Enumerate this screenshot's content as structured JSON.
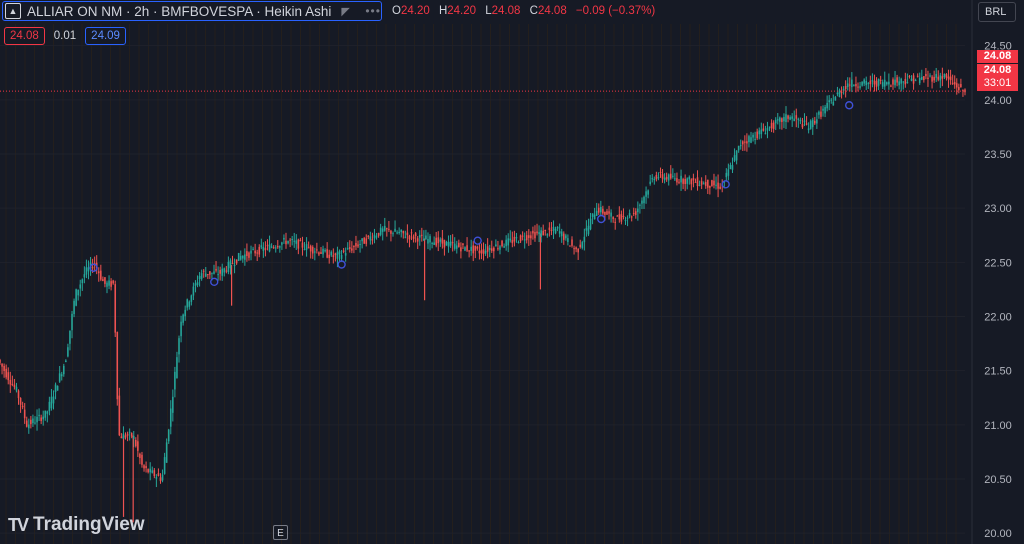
{
  "header": {
    "symbol_title": "ALLIAR ON NM · 2h · BMFBOVESPA · Heikin Ashi",
    "ohlc": {
      "o_label": "O",
      "o_value": "24.20",
      "h_label": "H",
      "h_value": "24.20",
      "l_label": "L",
      "l_value": "24.08",
      "c_label": "C",
      "c_value": "24.08",
      "change": "−0.09 (−0.37%)"
    }
  },
  "quote": {
    "bid": "24.08",
    "spread": "0.01",
    "ask": "24.09"
  },
  "currency": "BRL",
  "price_tags": {
    "last": "24.08",
    "close": "24.08",
    "countdown": "33:01"
  },
  "branding": {
    "logo_mark": "TV",
    "logo_text": "TradingView",
    "e_button": "E"
  },
  "colors": {
    "up": "#26a69a",
    "down": "#ef5350",
    "background": "#161a25",
    "accent": "#2962ff",
    "tag": "#f23645"
  },
  "chart_data": {
    "type": "candlestick",
    "style": "Heikin Ashi",
    "symbol": "ALLIAR ON NM",
    "interval": "2h",
    "exchange": "BMFBOVESPA",
    "ylim": [
      19.9,
      24.7
    ],
    "y_ticks": [
      "20.00",
      "20.50",
      "21.00",
      "21.50",
      "22.00",
      "22.50",
      "23.00",
      "23.50",
      "24.00",
      "24.50"
    ],
    "last_price": 24.08,
    "path_points": [
      [
        0,
        21.6
      ],
      [
        0.02,
        21.3
      ],
      [
        0.03,
        21.0
      ],
      [
        0.05,
        21.1
      ],
      [
        0.07,
        21.6
      ],
      [
        0.08,
        22.2
      ],
      [
        0.09,
        22.4
      ],
      [
        0.1,
        22.5
      ],
      [
        0.11,
        22.3
      ],
      [
        0.12,
        22.3
      ],
      [
        0.125,
        20.9
      ],
      [
        0.14,
        20.9
      ],
      [
        0.15,
        20.6
      ],
      [
        0.17,
        20.5
      ],
      [
        0.18,
        21.2
      ],
      [
        0.19,
        22.0
      ],
      [
        0.21,
        22.4
      ],
      [
        0.23,
        22.4
      ],
      [
        0.25,
        22.55
      ],
      [
        0.3,
        22.7
      ],
      [
        0.35,
        22.55
      ],
      [
        0.4,
        22.8
      ],
      [
        0.45,
        22.7
      ],
      [
        0.5,
        22.6
      ],
      [
        0.55,
        22.75
      ],
      [
        0.58,
        22.8
      ],
      [
        0.6,
        22.6
      ],
      [
        0.62,
        23.0
      ],
      [
        0.64,
        22.9
      ],
      [
        0.66,
        22.95
      ],
      [
        0.68,
        23.3
      ],
      [
        0.72,
        23.25
      ],
      [
        0.75,
        23.2
      ],
      [
        0.77,
        23.6
      ],
      [
        0.8,
        23.75
      ],
      [
        0.82,
        23.85
      ],
      [
        0.84,
        23.75
      ],
      [
        0.86,
        23.95
      ],
      [
        0.88,
        24.15
      ],
      [
        0.9,
        24.15
      ],
      [
        0.94,
        24.18
      ],
      [
        0.98,
        24.22
      ],
      [
        1.0,
        24.08
      ]
    ],
    "markers": [
      {
        "t": 0.097,
        "price": 22.45
      },
      {
        "t": 0.222,
        "price": 22.32
      },
      {
        "t": 0.354,
        "price": 22.48
      },
      {
        "t": 0.495,
        "price": 22.7
      },
      {
        "t": 0.623,
        "price": 22.9
      },
      {
        "t": 0.752,
        "price": 23.22
      },
      {
        "t": 0.88,
        "price": 23.95
      }
    ],
    "spikes": [
      {
        "t": 0.128,
        "low": 20.15
      },
      {
        "t": 0.138,
        "low": 20.1
      },
      {
        "t": 0.56,
        "low": 22.25
      },
      {
        "t": 0.44,
        "low": 22.15
      },
      {
        "t": 0.24,
        "low": 22.1
      }
    ]
  }
}
